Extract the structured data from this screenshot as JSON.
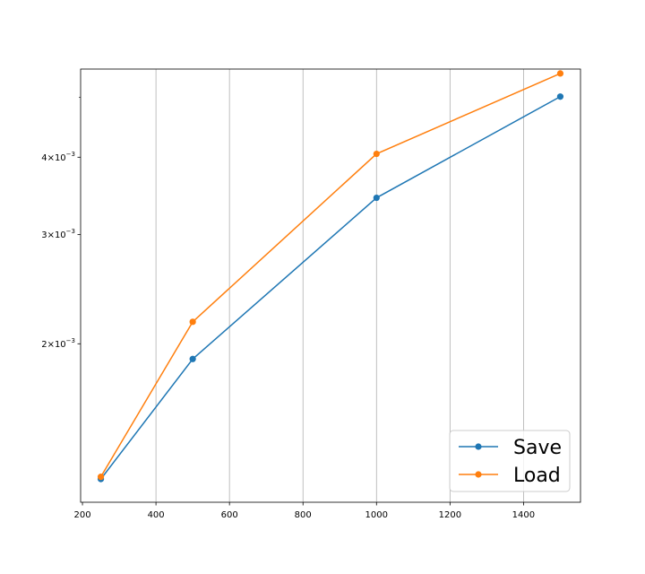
{
  "chart_data": {
    "type": "line",
    "title": "",
    "xlabel": "",
    "ylabel": "",
    "x_scale": "linear",
    "y_scale": "log",
    "xlim": [
      195,
      1555
    ],
    "ylim": [
      0.00111,
      0.00555
    ],
    "x_ticks": [
      200,
      400,
      600,
      800,
      1000,
      1200,
      1400
    ],
    "x_tick_labels": [
      "200",
      "400",
      "600",
      "800",
      "1000",
      "1200",
      "1400"
    ],
    "y_ticks": [
      0.002,
      0.003,
      0.004
    ],
    "y_tick_labels": [
      {
        "base": "2×10",
        "exp": "−3"
      },
      {
        "base": "3×10",
        "exp": "−3"
      },
      {
        "base": "4×10",
        "exp": "−3"
      }
    ],
    "y_minor_ticks": [
      0.005
    ],
    "grid": "x-major",
    "legend": "lower-right",
    "x": [
      250,
      500,
      1000,
      1500
    ],
    "series": [
      {
        "name": "Save",
        "color": "#1f77b4",
        "values": [
          0.00121,
          0.00189,
          0.00344,
          0.00501
        ]
      },
      {
        "name": "Load",
        "color": "#ff7f0e",
        "values": [
          0.00122,
          0.00217,
          0.00405,
          0.00546
        ]
      }
    ]
  }
}
